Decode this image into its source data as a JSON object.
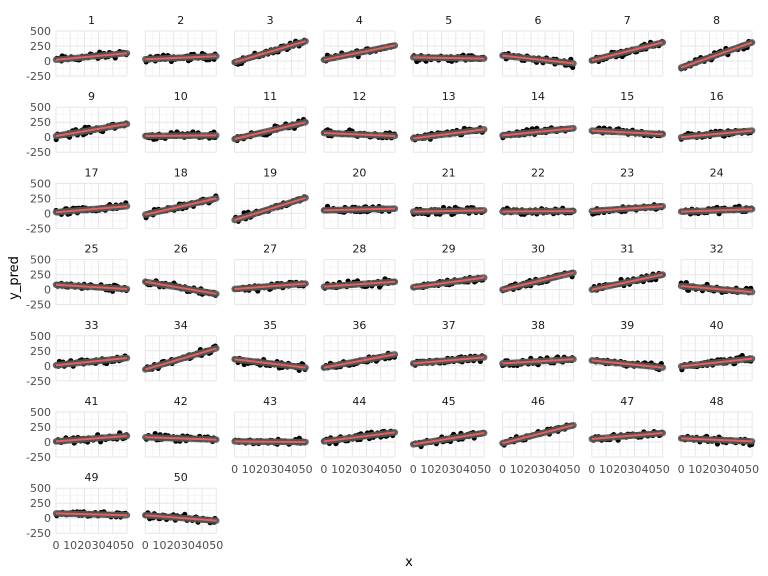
{
  "chart_data": {
    "type": "scatter",
    "facet_by": "group",
    "facet_columns": 8,
    "xlabel": "x",
    "ylabel": "y_pred",
    "xlim": [
      0,
      50
    ],
    "ylim": [
      -250,
      500
    ],
    "x_ticks": [
      0,
      10,
      20,
      30,
      40,
      50
    ],
    "x_tick_labels": [
      "0",
      "10",
      "20",
      "30",
      "40",
      "50"
    ],
    "y_ticks": [
      -250,
      0,
      250,
      500
    ],
    "y_tick_labels": [
      "-250",
      "0",
      "250",
      "500"
    ],
    "grid": true,
    "point_color": "#000000",
    "band_color": "#595959",
    "line_color": "#e8605a",
    "facets": [
      {
        "label": "1",
        "fit": [
          20,
          130
        ]
      },
      {
        "label": "2",
        "fit": [
          30,
          80
        ]
      },
      {
        "label": "3",
        "fit": [
          -20,
          330
        ]
      },
      {
        "label": "4",
        "fit": [
          20,
          260
        ]
      },
      {
        "label": "5",
        "fit": [
          60,
          40
        ]
      },
      {
        "label": "6",
        "fit": [
          90,
          -40
        ]
      },
      {
        "label": "7",
        "fit": [
          10,
          310
        ]
      },
      {
        "label": "8",
        "fit": [
          -110,
          310
        ]
      },
      {
        "label": "9",
        "fit": [
          20,
          220
        ]
      },
      {
        "label": "10",
        "fit": [
          20,
          30
        ]
      },
      {
        "label": "11",
        "fit": [
          -30,
          250
        ]
      },
      {
        "label": "12",
        "fit": [
          70,
          20
        ]
      },
      {
        "label": "13",
        "fit": [
          -20,
          130
        ]
      },
      {
        "label": "14",
        "fit": [
          30,
          150
        ]
      },
      {
        "label": "15",
        "fit": [
          110,
          50
        ]
      },
      {
        "label": "16",
        "fit": [
          0,
          110
        ]
      },
      {
        "label": "17",
        "fit": [
          20,
          120
        ]
      },
      {
        "label": "18",
        "fit": [
          -20,
          250
        ]
      },
      {
        "label": "19",
        "fit": [
          -110,
          260
        ]
      },
      {
        "label": "20",
        "fit": [
          50,
          80
        ]
      },
      {
        "label": "21",
        "fit": [
          30,
          50
        ]
      },
      {
        "label": "22",
        "fit": [
          30,
          40
        ]
      },
      {
        "label": "23",
        "fit": [
          40,
          120
        ]
      },
      {
        "label": "24",
        "fit": [
          30,
          70
        ]
      },
      {
        "label": "25",
        "fit": [
          80,
          10
        ]
      },
      {
        "label": "26",
        "fit": [
          130,
          -70
        ]
      },
      {
        "label": "27",
        "fit": [
          10,
          100
        ]
      },
      {
        "label": "28",
        "fit": [
          50,
          130
        ]
      },
      {
        "label": "29",
        "fit": [
          40,
          200
        ]
      },
      {
        "label": "30",
        "fit": [
          0,
          280
        ]
      },
      {
        "label": "31",
        "fit": [
          0,
          250
        ]
      },
      {
        "label": "32",
        "fit": [
          60,
          -40
        ]
      },
      {
        "label": "33",
        "fit": [
          10,
          130
        ]
      },
      {
        "label": "34",
        "fit": [
          -60,
          290
        ]
      },
      {
        "label": "35",
        "fit": [
          110,
          -30
        ]
      },
      {
        "label": "36",
        "fit": [
          -30,
          190
        ]
      },
      {
        "label": "37",
        "fit": [
          40,
          140
        ]
      },
      {
        "label": "38",
        "fit": [
          40,
          110
        ]
      },
      {
        "label": "39",
        "fit": [
          90,
          -30
        ]
      },
      {
        "label": "40",
        "fit": [
          -10,
          120
        ]
      },
      {
        "label": "41",
        "fit": [
          10,
          100
        ]
      },
      {
        "label": "42",
        "fit": [
          80,
          40
        ]
      },
      {
        "label": "43",
        "fit": [
          10,
          0
        ]
      },
      {
        "label": "44",
        "fit": [
          10,
          160
        ]
      },
      {
        "label": "45",
        "fit": [
          -40,
          150
        ]
      },
      {
        "label": "46",
        "fit": [
          -20,
          280
        ]
      },
      {
        "label": "47",
        "fit": [
          50,
          150
        ]
      },
      {
        "label": "48",
        "fit": [
          60,
          10
        ]
      },
      {
        "label": "49",
        "fit": [
          80,
          50
        ]
      },
      {
        "label": "50",
        "fit": [
          50,
          -40
        ]
      }
    ]
  }
}
